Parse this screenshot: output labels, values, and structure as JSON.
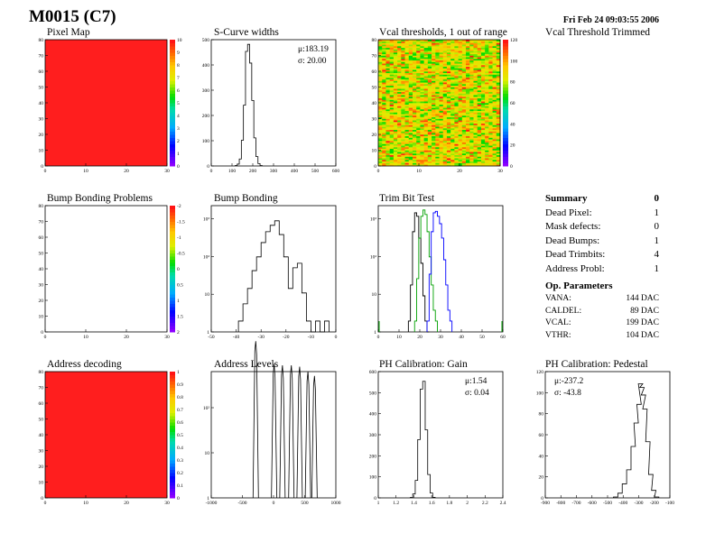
{
  "header": {
    "module": "M0015 (C7)",
    "date": "Fri Feb 24 09:03:55 2006"
  },
  "panels": {
    "pixel_map": {
      "title": "Pixel Map"
    },
    "scurve": {
      "title": "S-Curve widths",
      "mean": "μ:183.19",
      "sigma": "σ: 20.00"
    },
    "vcal_thr": {
      "title": "Vcal thresholds, 1 out of range"
    },
    "vcal_trim": {
      "title": "Vcal Threshold Trimmed"
    },
    "bump_problems": {
      "title": "Bump Bonding Problems"
    },
    "bump_bonding": {
      "title": "Bump Bonding"
    },
    "trim_bit": {
      "title": "Trim Bit Test"
    },
    "addr_decoding": {
      "title": "Address decoding"
    },
    "addr_levels": {
      "title": "Address Levels"
    },
    "ph_gain": {
      "title": "PH Calibration: Gain",
      "mean": "μ:1.54",
      "sigma": "σ: 0.04"
    },
    "ph_ped": {
      "title": "PH Calibration: Pedestal",
      "mean": "μ:-237.2",
      "sigma": "σ: -43.8"
    }
  },
  "summary": {
    "title": "Summary",
    "title_value": "0",
    "rows": [
      {
        "label": "Dead Pixel:",
        "value": "1"
      },
      {
        "label": "Mask defects:",
        "value": "0"
      },
      {
        "label": "Dead Bumps:",
        "value": "1"
      },
      {
        "label": "Dead Trimbits:",
        "value": "4"
      },
      {
        "label": "Address Probl:",
        "value": "1"
      }
    ]
  },
  "op_params": {
    "title": "Op. Parameters",
    "rows": [
      {
        "label": "VANA:",
        "value": "144 DAC"
      },
      {
        "label": "CALDEL:",
        "value": "89 DAC"
      },
      {
        "label": "VCAL:",
        "value": "199 DAC"
      },
      {
        "label": "VTHR:",
        "value": "104 DAC"
      }
    ]
  },
  "colors": {
    "map_red": "#ff1e1e",
    "line": "#000000",
    "blue": "#0000ff",
    "green": "#00a000"
  },
  "chart_data": [
    {
      "id": "pixel_map",
      "type": "heatmap",
      "title": "Pixel Map",
      "xticks": [
        "0",
        "10",
        "20",
        "30"
      ],
      "yticks": [
        "0",
        "10",
        "20",
        "30",
        "40",
        "50",
        "60",
        "70",
        "80"
      ],
      "xlim": [
        0,
        32
      ],
      "ylim": [
        0,
        80
      ],
      "uniform_value": 10,
      "colorbar_ticks": [
        "0",
        "1",
        "2",
        "3",
        "4",
        "5",
        "6",
        "7",
        "8",
        "9",
        "10"
      ]
    },
    {
      "id": "scurve",
      "type": "line",
      "title": "S-Curve widths",
      "xticks": [
        "0",
        "100",
        "200",
        "300",
        "400",
        "500",
        "600"
      ],
      "yticks": [
        "0",
        "100",
        "200",
        "300",
        "400",
        "500"
      ],
      "xlim": [
        0,
        600
      ],
      "ylim": [
        0,
        540
      ],
      "x": [
        120,
        130,
        140,
        150,
        160,
        170,
        180,
        190,
        200,
        210,
        220,
        230,
        240
      ],
      "values": [
        2,
        8,
        30,
        110,
        260,
        490,
        520,
        440,
        280,
        120,
        40,
        10,
        2
      ]
    },
    {
      "id": "vcal_thr",
      "type": "heatmap",
      "title": "Vcal thresholds, 1 out of range",
      "xticks": [
        "0",
        "10",
        "20",
        "30"
      ],
      "yticks": [
        "0",
        "10",
        "20",
        "30",
        "40",
        "50",
        "60",
        "70",
        "80"
      ],
      "xlim": [
        0,
        32
      ],
      "ylim": [
        0,
        80
      ],
      "colorbar_ticks": [
        "0",
        "20",
        "40",
        "60",
        "80",
        "100",
        "120"
      ],
      "zlim": [
        0,
        135
      ]
    },
    {
      "id": "bump_problems",
      "type": "heatmap",
      "title": "Bump Bonding Problems",
      "xticks": [
        "0",
        "10",
        "20",
        "30"
      ],
      "yticks": [
        "0",
        "10",
        "20",
        "30",
        "40",
        "50",
        "60",
        "70",
        "80"
      ],
      "xlim": [
        0,
        32
      ],
      "ylim": [
        0,
        80
      ],
      "colorbar_ticks": [
        "2",
        "1.5",
        "1",
        "0.5",
        "0",
        "-0.5",
        "-1",
        "-1.5",
        "-2"
      ]
    },
    {
      "id": "bump_bonding",
      "type": "line",
      "title": "Bump Bonding",
      "yscale": "log",
      "xticks": [
        "-50",
        "-40",
        "-30",
        "-20",
        "-10",
        "0"
      ],
      "yticks": [
        "1",
        "10",
        "10²",
        "10³"
      ],
      "xlim": [
        -50,
        5
      ],
      "ylim": [
        0.5,
        1500
      ],
      "x": [
        -37,
        -35,
        -33,
        -31,
        -29,
        -27,
        -25,
        -23,
        -21,
        -19,
        -17,
        -15,
        -13,
        -11,
        -9,
        -7,
        -5,
        -3,
        -1,
        1
      ],
      "values": [
        1,
        3,
        8,
        25,
        60,
        150,
        300,
        450,
        600,
        250,
        60,
        8,
        30,
        40,
        6,
        1,
        0.5,
        1,
        0.5,
        1
      ]
    },
    {
      "id": "trim_bit",
      "type": "line",
      "title": "Trim Bit Test",
      "yscale": "log",
      "xticks": [
        "0",
        "10",
        "20",
        "30",
        "40",
        "50",
        "60"
      ],
      "yticks": [
        "1",
        "10",
        "10²",
        "10³"
      ],
      "xlim": [
        0,
        60
      ],
      "ylim": [
        0.5,
        1500
      ],
      "series": [
        {
          "color": "#000000",
          "x": [
            15,
            16,
            17,
            18,
            19,
            20,
            21,
            22,
            23,
            24
          ],
          "values": [
            1,
            10,
            300,
            1000,
            800,
            200,
            40,
            5,
            1,
            0.5
          ]
        },
        {
          "color": "#00a000",
          "x": [
            18,
            19,
            20,
            21,
            22,
            23,
            24,
            25,
            26,
            27,
            28
          ],
          "values": [
            1,
            15,
            200,
            800,
            1200,
            900,
            300,
            60,
            10,
            2,
            1
          ]
        },
        {
          "color": "#0000ff",
          "x": [
            24,
            25,
            26,
            27,
            28,
            29,
            30,
            31,
            32,
            33,
            34,
            35
          ],
          "values": [
            1,
            20,
            300,
            1000,
            1100,
            800,
            500,
            200,
            50,
            10,
            2,
            1
          ]
        }
      ]
    },
    {
      "id": "addr_decoding",
      "type": "heatmap",
      "title": "Address decoding",
      "xticks": [
        "0",
        "10",
        "20",
        "30"
      ],
      "yticks": [
        "0",
        "10",
        "20",
        "30",
        "40",
        "50",
        "60",
        "70",
        "80"
      ],
      "xlim": [
        0,
        32
      ],
      "ylim": [
        0,
        80
      ],
      "uniform_value": 1,
      "colorbar_ticks": [
        "0",
        "0.1",
        "0.2",
        "0.3",
        "0.4",
        "0.5",
        "0.6",
        "0.7",
        "0.8",
        "0.9",
        "1"
      ]
    },
    {
      "id": "addr_levels",
      "type": "line",
      "title": "Address Levels",
      "yscale": "log",
      "xticks": [
        "-1000",
        "-500",
        "0",
        "500",
        "1000"
      ],
      "yticks": [
        "1",
        "10",
        "10²"
      ],
      "xlim": [
        -1100,
        1000
      ],
      "peaks": [
        {
          "x": -350,
          "h": 2500
        },
        {
          "x": -40,
          "h": 750
        },
        {
          "x": 100,
          "h": 700
        },
        {
          "x": 250,
          "h": 700
        },
        {
          "x": 390,
          "h": 650
        },
        {
          "x": 530,
          "h": 500
        },
        {
          "x": 640,
          "h": 400
        }
      ]
    },
    {
      "id": "ph_gain",
      "type": "line",
      "title": "PH Calibration: Gain",
      "xticks": [
        "1",
        "1.2",
        "1.4",
        "1.6",
        "1.8",
        "2",
        "2.2",
        "2.4"
      ],
      "yticks": [
        "0",
        "100",
        "200",
        "300",
        "400",
        "500",
        "600"
      ],
      "xlim": [
        1,
        2.5
      ],
      "ylim": [
        0,
        650
      ],
      "x": [
        1.4,
        1.43,
        1.46,
        1.49,
        1.52,
        1.55,
        1.58,
        1.61,
        1.64,
        1.67
      ],
      "values": [
        2,
        20,
        90,
        300,
        560,
        600,
        350,
        120,
        25,
        3
      ]
    },
    {
      "id": "ph_ped",
      "type": "line",
      "title": "PH Calibration: Pedestal",
      "xticks": [
        "-900",
        "-800",
        "-700",
        "-600",
        "-500",
        "-400",
        "-300",
        "-200",
        "-100"
      ],
      "yticks": [
        "0",
        "20",
        "40",
        "60",
        "80",
        "100",
        "120"
      ],
      "xlim": [
        -900,
        -50
      ],
      "ylim": [
        0,
        135
      ],
      "x": [
        -420,
        -390,
        -360,
        -330,
        -300,
        -280,
        -260,
        -250,
        -240,
        -230,
        -220,
        -200,
        -180,
        -160,
        -140
      ],
      "values": [
        1,
        5,
        15,
        30,
        55,
        80,
        100,
        122,
        118,
        110,
        95,
        60,
        25,
        8,
        1
      ]
    }
  ]
}
